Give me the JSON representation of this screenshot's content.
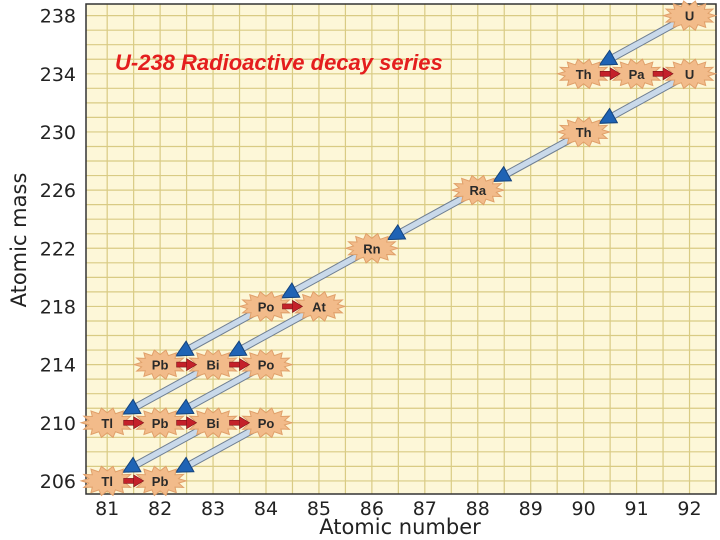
{
  "chart_data": {
    "type": "scatter",
    "title": "U-238 Radioactive decay series",
    "xlabel": "Atomic number",
    "ylabel": "Atomic mass",
    "x_ticks": [
      81,
      82,
      83,
      84,
      85,
      86,
      87,
      88,
      89,
      90,
      91,
      92
    ],
    "y_ticks": [
      206,
      210,
      214,
      218,
      222,
      226,
      230,
      234,
      238
    ],
    "xlim": [
      80.6,
      92.5
    ],
    "ylim": [
      205.1,
      238.8
    ],
    "grid": true,
    "nuclides": [
      {
        "symbol": "U",
        "z": 92,
        "a": 238
      },
      {
        "symbol": "Th",
        "z": 90,
        "a": 234
      },
      {
        "symbol": "Pa",
        "z": 91,
        "a": 234
      },
      {
        "symbol": "U",
        "z": 92,
        "a": 234
      },
      {
        "symbol": "Th",
        "z": 90,
        "a": 230
      },
      {
        "symbol": "Ra",
        "z": 88,
        "a": 226
      },
      {
        "symbol": "Rn",
        "z": 86,
        "a": 222
      },
      {
        "symbol": "Po",
        "z": 84,
        "a": 218
      },
      {
        "symbol": "At",
        "z": 85,
        "a": 218
      },
      {
        "symbol": "Pb",
        "z": 82,
        "a": 214
      },
      {
        "symbol": "Bi",
        "z": 83,
        "a": 214
      },
      {
        "symbol": "Po",
        "z": 84,
        "a": 214
      },
      {
        "symbol": "Tl",
        "z": 81,
        "a": 210
      },
      {
        "symbol": "Pb",
        "z": 82,
        "a": 210
      },
      {
        "symbol": "Bi",
        "z": 83,
        "a": 210
      },
      {
        "symbol": "Po",
        "z": 84,
        "a": 210
      },
      {
        "symbol": "Tl",
        "z": 81,
        "a": 206
      },
      {
        "symbol": "Pb",
        "z": 82,
        "a": 206
      }
    ],
    "alpha_decays": [
      {
        "from": [
          92,
          238
        ],
        "to": [
          90,
          234
        ]
      },
      {
        "from": [
          92,
          234
        ],
        "to": [
          90,
          230
        ]
      },
      {
        "from": [
          90,
          230
        ],
        "to": [
          88,
          226
        ]
      },
      {
        "from": [
          88,
          226
        ],
        "to": [
          86,
          222
        ]
      },
      {
        "from": [
          86,
          222
        ],
        "to": [
          84,
          218
        ]
      },
      {
        "from": [
          84,
          218
        ],
        "to": [
          82,
          214
        ]
      },
      {
        "from": [
          85,
          218
        ],
        "to": [
          83,
          214
        ]
      },
      {
        "from": [
          83,
          214
        ],
        "to": [
          81,
          210
        ]
      },
      {
        "from": [
          84,
          214
        ],
        "to": [
          82,
          210
        ]
      },
      {
        "from": [
          83,
          210
        ],
        "to": [
          81,
          206
        ]
      },
      {
        "from": [
          84,
          210
        ],
        "to": [
          82,
          206
        ]
      }
    ],
    "beta_decays": [
      {
        "from": [
          90,
          234
        ],
        "to": [
          91,
          234
        ]
      },
      {
        "from": [
          91,
          234
        ],
        "to": [
          92,
          234
        ]
      },
      {
        "from": [
          84,
          218
        ],
        "to": [
          85,
          218
        ]
      },
      {
        "from": [
          82,
          214
        ],
        "to": [
          83,
          214
        ]
      },
      {
        "from": [
          83,
          214
        ],
        "to": [
          84,
          214
        ]
      },
      {
        "from": [
          81,
          210
        ],
        "to": [
          82,
          210
        ]
      },
      {
        "from": [
          82,
          210
        ],
        "to": [
          83,
          210
        ]
      },
      {
        "from": [
          83,
          210
        ],
        "to": [
          84,
          210
        ]
      },
      {
        "from": [
          81,
          206
        ],
        "to": [
          82,
          206
        ]
      }
    ]
  },
  "colors": {
    "background": "#fdf7d8",
    "grid": "#d9cb84",
    "frame": "#333333",
    "burst": "#f2bb8a",
    "burst_stroke": "#e0a06a",
    "alpha_arrow_head": "#1f63b5",
    "alpha_arrow_body": "#c9d9ea",
    "beta_arrow": "#c4212a",
    "title": "#e41e1e"
  }
}
